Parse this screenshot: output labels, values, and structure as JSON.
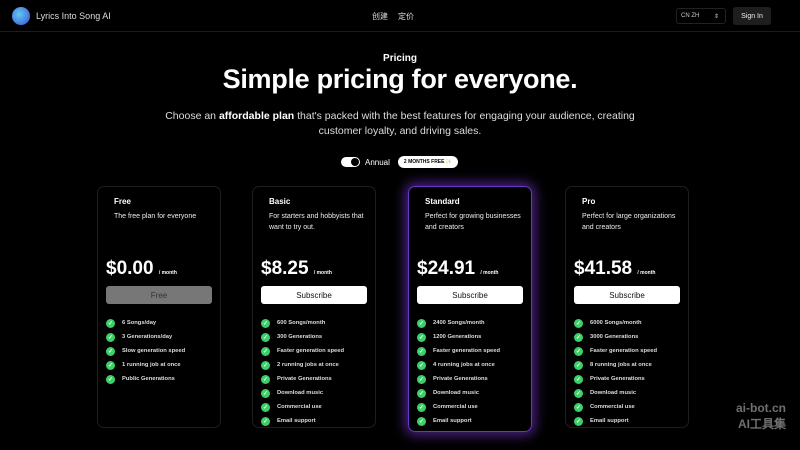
{
  "header": {
    "brand": "Lyrics Into Song AI",
    "nav": [
      "创建",
      "定价"
    ],
    "lang_flag": "CN",
    "lang": "ZH",
    "sign_in": "Sign In"
  },
  "hero": {
    "kicker": "Pricing",
    "title": "Simple pricing for everyone.",
    "sub_pre": "Choose an ",
    "sub_bold": "affordable plan",
    "sub_post": " that's packed with the best features for engaging your audience, creating customer loyalty, and driving sales."
  },
  "billing": {
    "label": "Annual",
    "badge": "2 MONTHS FREE ✨",
    "annual": true
  },
  "plans": [
    {
      "name": "Free",
      "desc": "The free plan for everyone",
      "price": "$0.00",
      "per": "/ month",
      "button": "Free",
      "features": [
        "6 Songs/day",
        "3 Generations/day",
        "Slow generation speed",
        "1 running job at once",
        "Public Generations"
      ]
    },
    {
      "name": "Basic",
      "desc": "For starters and hobbyists that want to try out.",
      "price": "$8.25",
      "per": "/ month",
      "button": "Subscribe",
      "features": [
        "600 Songs/month",
        "300 Generations",
        "Faster generation speed",
        "2 running jobs at once",
        "Private Generations",
        "Download music",
        "Commercial use",
        "Email support"
      ]
    },
    {
      "name": "Standard",
      "desc": "Perfect for growing businesses and creators",
      "price": "$24.91",
      "per": "/ month",
      "button": "Subscribe",
      "features": [
        "2400 Songs/month",
        "1200 Generations",
        "Faster generation speed",
        "4 running jobs at once",
        "Private Generations",
        "Download music",
        "Commercial use",
        "Email support"
      ]
    },
    {
      "name": "Pro",
      "desc": "Perfect for large organizations and creators",
      "price": "$41.58",
      "per": "/ month",
      "button": "Subscribe",
      "features": [
        "6000 Songs/month",
        "3000 Generations",
        "Faster generation speed",
        "8 running jobs at once",
        "Private Generations",
        "Download music",
        "Commercial use",
        "Email support"
      ]
    }
  ],
  "watermark": {
    "line1": "ai-bot.cn",
    "line2": "AI工具集"
  }
}
